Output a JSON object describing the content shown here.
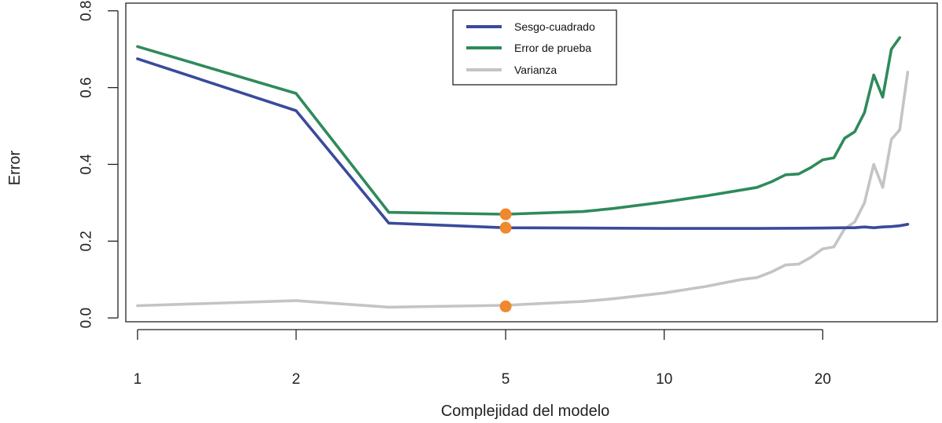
{
  "chart_data": {
    "type": "line",
    "title": "",
    "xlabel": "Complejidad del modelo",
    "ylabel": "Error",
    "x_scale": "log",
    "xlim": [
      0.95,
      33
    ],
    "ylim": [
      -0.01,
      0.82
    ],
    "x_ticks": [
      1,
      2,
      5,
      10,
      20
    ],
    "x_tick_labels": [
      "1",
      "2",
      "5",
      "10",
      "20"
    ],
    "y_ticks": [
      0.0,
      0.2,
      0.4,
      0.6,
      0.8
    ],
    "y_tick_labels": [
      "0.0",
      "0.2",
      "0.4",
      "0.6",
      "0.8"
    ],
    "grid": false,
    "legend_position": "top-center",
    "series": [
      {
        "name": "Sesgo-cuadrado",
        "color": "#3a4a9c",
        "x": [
          1,
          2,
          3,
          5,
          7,
          10,
          15,
          20,
          22,
          23,
          24,
          25,
          26,
          27,
          28,
          29
        ],
        "y": [
          0.675,
          0.54,
          0.247,
          0.235,
          0.234,
          0.233,
          0.233,
          0.234,
          0.235,
          0.235,
          0.237,
          0.235,
          0.237,
          0.238,
          0.24,
          0.244
        ]
      },
      {
        "name": "Error de prueba",
        "color": "#2f8a5b",
        "x": [
          1,
          2,
          3,
          5,
          7,
          8,
          10,
          12,
          14,
          15,
          16,
          17,
          18,
          19,
          20,
          21,
          22,
          23,
          24,
          25,
          26,
          27,
          28
        ],
        "y": [
          0.707,
          0.585,
          0.275,
          0.27,
          0.277,
          0.285,
          0.302,
          0.318,
          0.333,
          0.34,
          0.355,
          0.373,
          0.375,
          0.392,
          0.412,
          0.417,
          0.468,
          0.485,
          0.535,
          0.633,
          0.575,
          0.7,
          0.73
        ]
      },
      {
        "name": "Varianza",
        "color": "#c4c4c4",
        "x": [
          1,
          2,
          3,
          5,
          7,
          8,
          10,
          12,
          14,
          15,
          16,
          17,
          18,
          19,
          20,
          21,
          22,
          23,
          24,
          25,
          26,
          27,
          28,
          29
        ],
        "y": [
          0.032,
          0.045,
          0.028,
          0.033,
          0.043,
          0.05,
          0.065,
          0.082,
          0.1,
          0.105,
          0.12,
          0.138,
          0.14,
          0.158,
          0.18,
          0.185,
          0.232,
          0.25,
          0.3,
          0.4,
          0.34,
          0.465,
          0.49,
          0.64
        ]
      }
    ],
    "annotations": {
      "color": "#f0882e",
      "points": [
        {
          "x": 5,
          "y": 0.27
        },
        {
          "x": 5,
          "y": 0.235
        },
        {
          "x": 5,
          "y": 0.03
        }
      ]
    }
  }
}
